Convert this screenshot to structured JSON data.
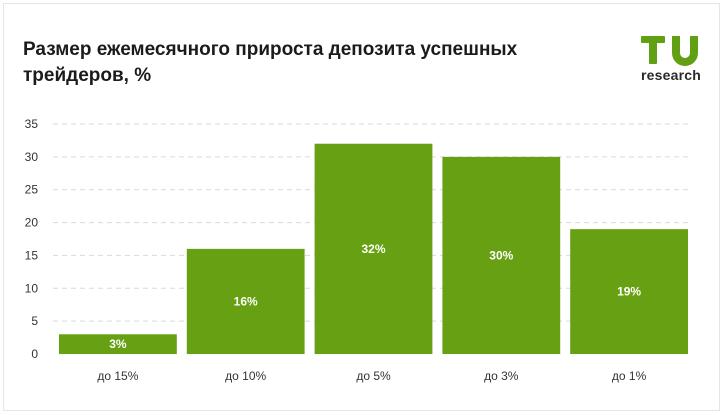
{
  "brand": {
    "logo_text": "research",
    "logo_letters": "TU",
    "logo_color": "#62a013"
  },
  "chart_data": {
    "type": "bar",
    "title": "Размер ежемесячного прироста депозита успешных трейдеров, %",
    "xlabel": "",
    "ylabel": "",
    "categories": [
      "до 15%",
      "до 10%",
      "до 5%",
      "до 3%",
      "до 1%"
    ],
    "values": [
      3,
      16,
      32,
      30,
      19
    ],
    "data_labels": [
      "3%",
      "16%",
      "32%",
      "30%",
      "19%"
    ],
    "ylim": [
      0,
      35
    ],
    "yticks": [
      0,
      5,
      10,
      15,
      20,
      25,
      30,
      35
    ],
    "grid": true,
    "bar_color": "#67a012",
    "label_color": "#ffffff"
  }
}
